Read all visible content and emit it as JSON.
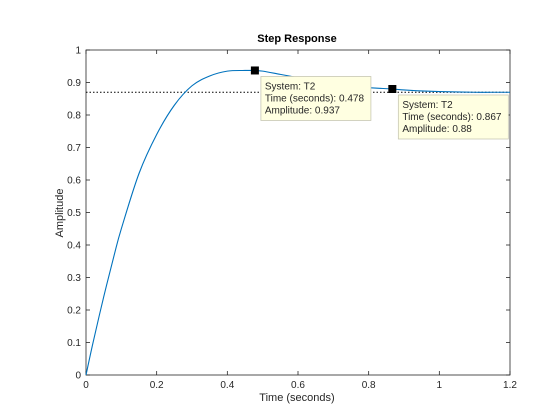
{
  "chart_data": {
    "type": "line",
    "title": "Step Response",
    "xlabel": "Time (seconds)",
    "ylabel": "Amplitude",
    "xlim": [
      0,
      1.2
    ],
    "ylim": [
      0,
      1
    ],
    "xticks": [
      "0",
      "0.2",
      "0.4",
      "0.6",
      "0.8",
      "1",
      "1.2"
    ],
    "yticks": [
      "0",
      "0.1",
      "0.2",
      "0.3",
      "0.4",
      "0.5",
      "0.6",
      "0.7",
      "0.8",
      "0.9",
      "1"
    ],
    "grid": false,
    "steady_state": 0.87,
    "series": [
      {
        "color": "#0072bd",
        "x": [
          0,
          0.02,
          0.05,
          0.08,
          0.1,
          0.15,
          0.2,
          0.25,
          0.3,
          0.35,
          0.4,
          0.45,
          0.478,
          0.5,
          0.55,
          0.6,
          0.65,
          0.7,
          0.75,
          0.8,
          0.867,
          0.9,
          0.95,
          1.0,
          1.05,
          1.1,
          1.15,
          1.2
        ],
        "y": [
          0,
          0.1,
          0.24,
          0.37,
          0.45,
          0.62,
          0.74,
          0.83,
          0.89,
          0.92,
          0.935,
          0.937,
          0.937,
          0.935,
          0.925,
          0.915,
          0.905,
          0.895,
          0.888,
          0.884,
          0.88,
          0.877,
          0.874,
          0.872,
          0.871,
          0.87,
          0.87,
          0.87
        ]
      }
    ],
    "datatips": [
      {
        "x": 0.478,
        "y": 0.937,
        "system": "System: T2",
        "time": "Time (seconds): 0.478",
        "amplitude": "Amplitude: 0.937"
      },
      {
        "x": 0.867,
        "y": 0.88,
        "system": "System: T2",
        "time": "Time (seconds): 0.867",
        "amplitude": "Amplitude: 0.88"
      }
    ]
  }
}
